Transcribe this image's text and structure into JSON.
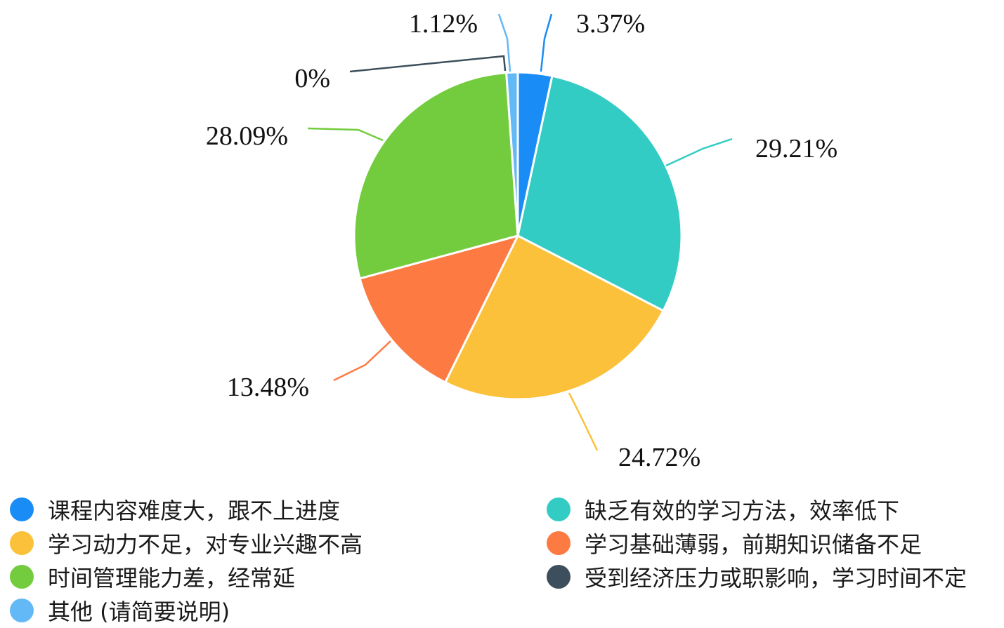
{
  "chart_data": {
    "type": "pie",
    "slices": [
      {
        "label": "课程内容难度大，跟不上进度",
        "value": 3.37,
        "value_label": "3.37%",
        "color": "#1a8cf5"
      },
      {
        "label": "缺乏有效的学习方法，效率低下",
        "value": 29.21,
        "value_label": "29.21%",
        "color": "#33ccc4"
      },
      {
        "label": "学习动力不足，对专业兴趣不高",
        "value": 24.72,
        "value_label": "24.72%",
        "color": "#fbc13b"
      },
      {
        "label": "学习基础薄弱，前期知识储备不足",
        "value": 13.48,
        "value_label": "13.48%",
        "color": "#fd7a43"
      },
      {
        "label": "时间管理能力差，经常延",
        "value": 28.09,
        "value_label": "28.09%",
        "color": "#72cc3d"
      },
      {
        "label": "受到经济压力或职影响，学习时间不定",
        "value": 0,
        "value_label": "0%",
        "color": "#3d4f5c"
      },
      {
        "label": "其他 (请简要说明)",
        "value": 1.12,
        "value_label": "1.12%",
        "color": "#63b8f6"
      }
    ],
    "legend_placement": "bottom"
  }
}
